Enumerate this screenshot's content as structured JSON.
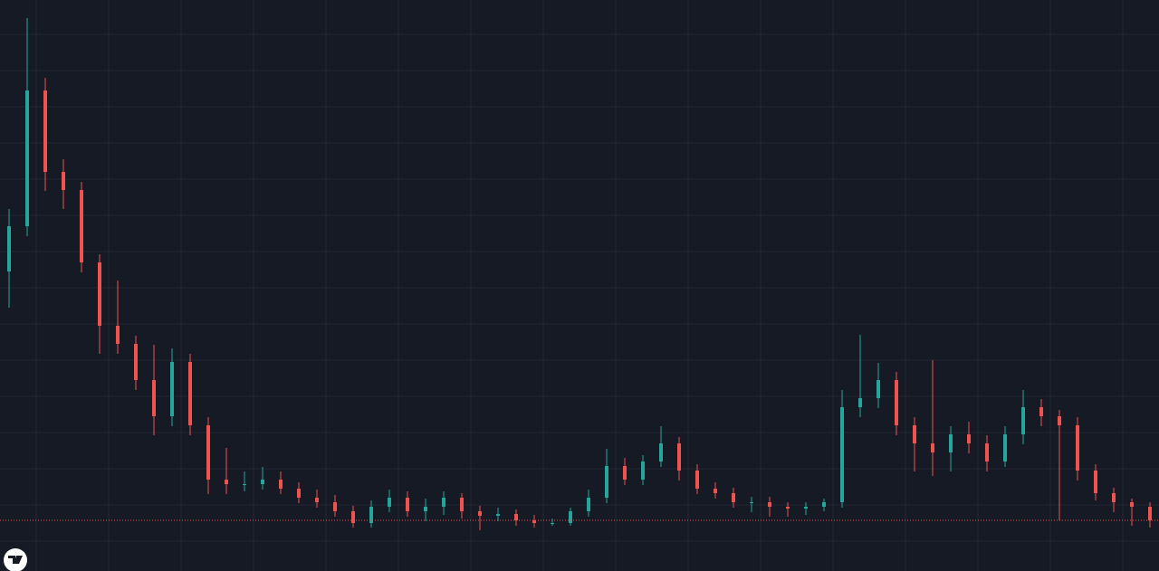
{
  "chart_data": {
    "type": "candlestick",
    "up_color": "#26a69a",
    "down_color": "#ef5350",
    "ylim": [
      0,
      631
    ],
    "grid": true,
    "price_line": 56,
    "price_line_color": "#ef5350",
    "open": [
      331,
      381,
      531,
      441,
      421,
      341,
      271,
      251,
      211,
      171,
      231,
      161,
      101,
      96,
      96,
      101,
      91,
      81,
      76,
      66,
      53,
      71,
      81,
      66,
      71,
      81,
      66,
      61,
      63,
      56,
      53,
      53,
      66,
      81,
      116,
      101,
      121,
      141,
      111,
      91,
      86,
      76,
      76,
      71,
      69,
      71,
      76,
      181,
      191,
      211,
      161,
      141,
      131,
      151,
      141,
      121,
      151,
      181,
      171,
      161,
      111,
      86,
      76,
      71
    ],
    "high": [
      400,
      611,
      545,
      455,
      430,
      350,
      321,
      260,
      250,
      246,
      240,
      170,
      136,
      110,
      115,
      110,
      98,
      90,
      84,
      72,
      78,
      90,
      88,
      80,
      88,
      86,
      72,
      70,
      68,
      62,
      58,
      70,
      90,
      135,
      125,
      128,
      160,
      148,
      118,
      98,
      92,
      82,
      82,
      76,
      76,
      80,
      200,
      261,
      230,
      220,
      170,
      233,
      160,
      165,
      150,
      160,
      200,
      190,
      178,
      170,
      118,
      92,
      80,
      76
    ],
    "low": [
      291,
      370,
      420,
      400,
      330,
      240,
      240,
      200,
      150,
      160,
      150,
      85,
      85,
      88,
      90,
      85,
      75,
      70,
      60,
      48,
      48,
      65,
      60,
      55,
      62,
      58,
      45,
      55,
      50,
      48,
      50,
      50,
      60,
      75,
      95,
      95,
      115,
      100,
      85,
      80,
      70,
      65,
      60,
      60,
      62,
      66,
      70,
      170,
      180,
      150,
      110,
      105,
      110,
      130,
      110,
      115,
      140,
      160,
      56,
      100,
      78,
      65,
      50,
      48
    ],
    "close": [
      381,
      531,
      441,
      421,
      341,
      271,
      251,
      211,
      171,
      231,
      161,
      101,
      96,
      96,
      101,
      91,
      81,
      76,
      66,
      53,
      71,
      81,
      66,
      71,
      81,
      66,
      61,
      63,
      56,
      53,
      53,
      66,
      81,
      116,
      101,
      121,
      141,
      111,
      91,
      86,
      76,
      76,
      71,
      69,
      71,
      76,
      181,
      191,
      211,
      161,
      141,
      131,
      151,
      141,
      121,
      151,
      181,
      171,
      161,
      111,
      86,
      76,
      71,
      56
    ]
  }
}
